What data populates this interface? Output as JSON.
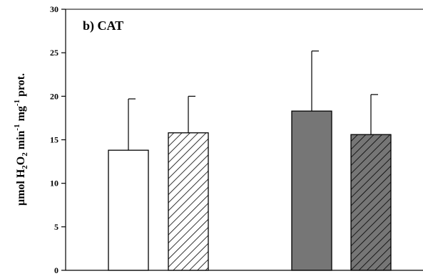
{
  "chart_data": {
    "type": "bar",
    "title": "b) CAT",
    "ylabel": {
      "prefix": "µmol H",
      "sub1": "2",
      "mid1": "O",
      "sub2": "2",
      "mid2": " min",
      "sup1": "-1",
      "mid3": " mg",
      "sup2": "-1",
      "suffix": " prot."
    },
    "xlabel": "",
    "ylim": [
      0,
      30
    ],
    "yticks": [
      "0",
      "5",
      "10",
      "15",
      "20",
      "25",
      "30"
    ],
    "ytick_values": [
      0,
      5,
      10,
      15,
      20,
      25,
      30
    ],
    "bars": [
      {
        "value": 13.8,
        "error": 5.9,
        "fill": "#ffffff",
        "hatch": false
      },
      {
        "value": 15.8,
        "error": 4.2,
        "fill": "#ffffff",
        "hatch": true
      },
      {
        "value": 18.3,
        "error": 6.9,
        "fill": "#767676",
        "hatch": false
      },
      {
        "value": 15.6,
        "error": 4.6,
        "fill": "#767676",
        "hatch": true
      }
    ],
    "grid": false,
    "colors": {
      "axis": "#000000",
      "dark_fill": "#767676",
      "light_fill": "#ffffff"
    }
  }
}
